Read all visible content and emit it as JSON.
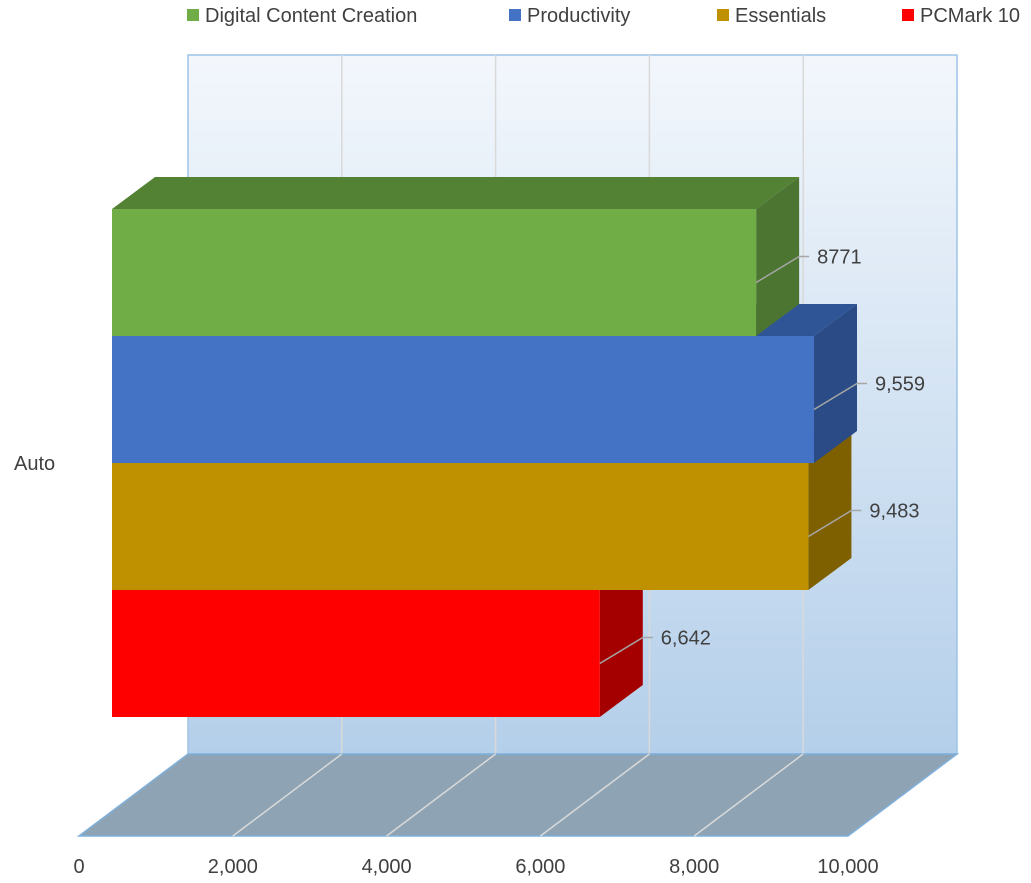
{
  "chart_data": {
    "type": "bar",
    "orientation": "horizontal",
    "style": "3d-clustered",
    "title": "",
    "xlabel": "",
    "ylabel": "",
    "categories": [
      "Auto"
    ],
    "xlim": [
      0,
      10000
    ],
    "x_ticks": [
      0,
      2000,
      4000,
      6000,
      8000,
      10000
    ],
    "x_tick_labels": [
      "0",
      "2,000",
      "4,000",
      "6,000",
      "8,000",
      "10,000"
    ],
    "grid": true,
    "legend_position": "top",
    "series": [
      {
        "name": "Digital Content Creation",
        "values": [
          8771
        ],
        "label": "8771",
        "color": "#70AD47",
        "top_color": "#548235",
        "side_color": "#4B7530"
      },
      {
        "name": "Productivity",
        "values": [
          9559
        ],
        "label": "9,559",
        "color": "#4472C4",
        "top_color": "#2F5597",
        "side_color": "#2A4B85"
      },
      {
        "name": "Essentials",
        "values": [
          9483
        ],
        "label": "9,483",
        "color": "#BF9000",
        "top_color": "#8C6A00",
        "side_color": "#7F6000"
      },
      {
        "name": "PCMark 10",
        "values": [
          6642
        ],
        "label": "6,642",
        "color": "#FF0000",
        "top_color": "#C00000",
        "side_color": "#A50000"
      }
    ],
    "colors": {
      "wall_top": "#F3F7FC",
      "wall_bottom": "#B4CFEA",
      "wall_border": "#9DC3E6",
      "floor": "#8EA4B4",
      "floor_edge": "#7FB0DC",
      "gridline": "#D9D9D9",
      "leader": "#A6A6A6"
    }
  }
}
